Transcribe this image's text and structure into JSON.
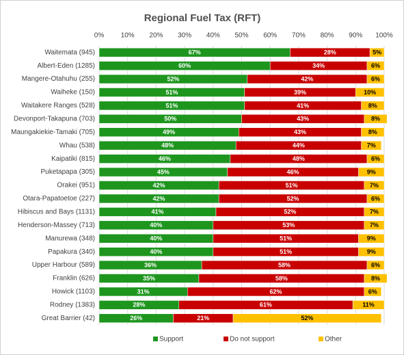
{
  "chart_data": {
    "type": "stacked-bar-horizontal",
    "title": "Regional Fuel Tax (RFT)",
    "categories": [
      "Waitemata (945)",
      "Albert-Eden (1285)",
      "Mangere-Otahuhu (255)",
      "Waiheke (150)",
      "Waitakere Ranges (528)",
      "Devonport-Takapuna (703)",
      "Maungakiekie-Tamaki (705)",
      "Whau (538)",
      "Kaipatiki (815)",
      "Puketapapa (305)",
      "Orakei (951)",
      "Otara-Papatoetoe (227)",
      "Hibiscus and Bays (1131)",
      "Henderson-Massey (713)",
      "Manurewa (348)",
      "Papakura (340)",
      "Upper Harbour (589)",
      "Franklin (626)",
      "Howick (1103)",
      "Rodney (1383)",
      "Great Barrier (42)"
    ],
    "series": [
      {
        "name": "Support",
        "color": "#1e961e",
        "values": [
          67,
          60,
          52,
          51,
          51,
          50,
          49,
          48,
          46,
          45,
          42,
          42,
          41,
          40,
          40,
          40,
          36,
          35,
          31,
          28,
          26
        ],
        "value_labels": [
          "67%",
          "60%",
          "52%",
          "51%",
          "51%",
          "50%",
          "49%",
          "48%",
          "46%",
          "45%",
          "42%",
          "42%",
          "41%",
          "40%",
          "40%",
          "40%",
          "36%",
          "35%",
          "31%",
          "28%",
          "26%"
        ]
      },
      {
        "name": "Do not support",
        "color": "#c80000",
        "values": [
          28,
          34,
          42,
          39,
          41,
          43,
          43,
          44,
          48,
          46,
          51,
          52,
          52,
          53,
          51,
          51,
          58,
          58,
          62,
          61,
          21
        ],
        "value_labels": [
          "28%",
          "34%",
          "42%",
          "39%",
          "41%",
          "43%",
          "43%",
          "44%",
          "48%",
          "46%",
          "51%",
          "52%",
          "52%",
          "53%",
          "51%",
          "51%",
          "58%",
          "58%",
          "62%",
          "61%",
          "21%"
        ]
      },
      {
        "name": "Other",
        "color": "#ffc000",
        "values": [
          5,
          6,
          6,
          10,
          8,
          8,
          8,
          7,
          6,
          9,
          7,
          6,
          7,
          7,
          9,
          9,
          6,
          8,
          6,
          11,
          52
        ],
        "value_labels": [
          "5%",
          "6%",
          "6%",
          "10%",
          "8%",
          "8%",
          "8%",
          "7%",
          "6%",
          "9%",
          "7%",
          "6%",
          "7%",
          "7%",
          "9%",
          "9%",
          "6%",
          "8%",
          "6%",
          "11%",
          "52%"
        ]
      }
    ],
    "xlim": [
      0,
      100
    ],
    "xticks": [
      {
        "value": 0,
        "label": "0%"
      },
      {
        "value": 10,
        "label": "10%"
      },
      {
        "value": 20,
        "label": "20%"
      },
      {
        "value": 30,
        "label": "30%"
      },
      {
        "value": 40,
        "label": "40%"
      },
      {
        "value": 50,
        "label": "50%"
      },
      {
        "value": 60,
        "label": "60%"
      },
      {
        "value": 70,
        "label": "70%"
      },
      {
        "value": 80,
        "label": "80%"
      },
      {
        "value": 90,
        "label": "90%"
      },
      {
        "value": 100,
        "label": "100%"
      }
    ],
    "grid": true,
    "legend": "bottom"
  }
}
